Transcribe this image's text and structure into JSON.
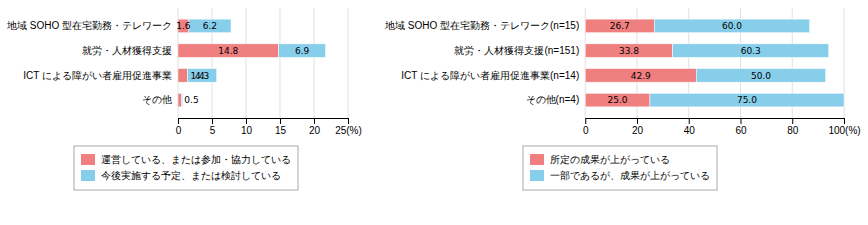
{
  "chart_data": [
    {
      "type": "bar",
      "orientation": "horizontal",
      "stacked": true,
      "data_labels": true,
      "grid": true,
      "legend": "bottom",
      "categories": [
        "地域 SOHO 型在宅勤務・テレワーク",
        "就労・人材獲得支援",
        "ICT による障がい者雇用促進事業",
        "その他"
      ],
      "series": [
        {
          "name": "運営している、または参加・協力している",
          "color": "#f08080",
          "values": [
            1.6,
            14.8,
            1.4,
            0.5
          ]
        },
        {
          "name": "今後実施する予定、または検討している",
          "color": "#87CEEB",
          "values": [
            6.2,
            6.9,
            4.3,
            0.2
          ],
          "value_labels": [
            "6.2",
            "6.9",
            "4.3",
            null
          ]
        }
      ],
      "xlim": [
        0,
        25
      ],
      "xticks": [
        0,
        5,
        10,
        15,
        20,
        {
          "value": 25,
          "label": "25(%)"
        }
      ]
    },
    {
      "type": "bar",
      "orientation": "horizontal",
      "stacked": true,
      "data_labels": true,
      "grid": true,
      "legend": "bottom",
      "categories": [
        "地域 SOHO 型在宅勤務・テレワーク(n=15)",
        "就労・人材獲得支援(n=151)",
        "ICT による障がい者雇用促進事業(n=14)",
        "その他(n=4)"
      ],
      "series": [
        {
          "name": "所定の成果が上がっている",
          "color": "#f08080",
          "values": [
            26.7,
            33.8,
            42.9,
            25.0
          ],
          "value_labels": [
            "26.7",
            "33.8",
            "42.9",
            "25.0"
          ]
        },
        {
          "name": "一部であるが、成果が上がっている",
          "color": "#87CEEB",
          "values": [
            60.0,
            60.3,
            50.0,
            75.0
          ],
          "value_labels": [
            "60.0",
            "60.3",
            "50.0",
            "75.0"
          ]
        }
      ],
      "xlim": [
        0,
        100
      ],
      "xticks": [
        0,
        20,
        40,
        60,
        80,
        {
          "value": 100,
          "label": "100(%)"
        }
      ]
    }
  ]
}
